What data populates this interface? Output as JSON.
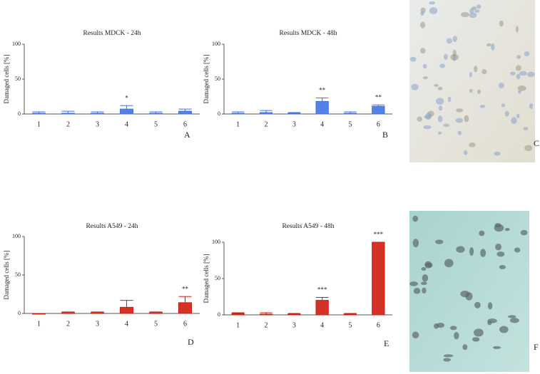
{
  "chart_data": [
    {
      "type": "bar",
      "title": "Results MDCK - 24h",
      "panel": "A",
      "y_label": "Damaged cells [%]",
      "categories": [
        "1",
        "2",
        "3",
        "4",
        "5",
        "6"
      ],
      "series": [
        {
          "color": "#3f73e6",
          "values": [
            1,
            1,
            1,
            7,
            1,
            4
          ],
          "errors": [
            2,
            3,
            2,
            5,
            2,
            3
          ],
          "significance": [
            null,
            null,
            null,
            "*",
            null,
            null
          ]
        }
      ],
      "ylim": [
        0,
        100
      ],
      "yticks": [
        0,
        50,
        100
      ]
    },
    {
      "type": "bar",
      "title": "Results MDCK - 48h",
      "panel": "B",
      "y_label": "Damaged cells [%]",
      "categories": [
        "1",
        "2",
        "3",
        "4",
        "5",
        "6"
      ],
      "series": [
        {
          "color": "#3f73e6",
          "values": [
            1,
            2,
            1,
            18,
            1,
            11
          ],
          "errors": [
            2,
            3,
            1,
            5,
            2,
            2
          ],
          "significance": [
            null,
            null,
            null,
            "**",
            null,
            "**"
          ]
        }
      ],
      "ylim": [
        0,
        100
      ],
      "yticks": [
        0,
        50,
        100
      ]
    },
    {
      "type": "bar",
      "title": "Results A549 - 24h",
      "panel": "D",
      "y_label": "Damaged cells [%]",
      "categories": [
        "1",
        "2",
        "3",
        "4",
        "5",
        "6"
      ],
      "series": [
        {
          "color": "#d01c10",
          "values": [
            0,
            1,
            1,
            8,
            1,
            14
          ],
          "errors": [
            0,
            1,
            1,
            9,
            1,
            8
          ],
          "significance": [
            null,
            null,
            null,
            null,
            null,
            "**"
          ]
        }
      ],
      "ylim": [
        0,
        100
      ],
      "yticks": [
        0,
        50,
        100
      ]
    },
    {
      "type": "bar",
      "title": "Results A549 - 48h",
      "panel": "E",
      "y_label": "Damaged cells [%]",
      "categories": [
        "1",
        "2",
        "3",
        "4",
        "5",
        "6"
      ],
      "series": [
        {
          "color": "#d01c10",
          "values": [
            2,
            1,
            1,
            20,
            1,
            100
          ],
          "errors": [
            1,
            2,
            1,
            4,
            1,
            0
          ],
          "significance": [
            null,
            null,
            null,
            "***",
            null,
            "***"
          ]
        }
      ],
      "ylim": [
        0,
        100
      ],
      "yticks": [
        0,
        50,
        100
      ]
    }
  ],
  "images": [
    {
      "panel": "C"
    },
    {
      "panel": "F"
    }
  ]
}
